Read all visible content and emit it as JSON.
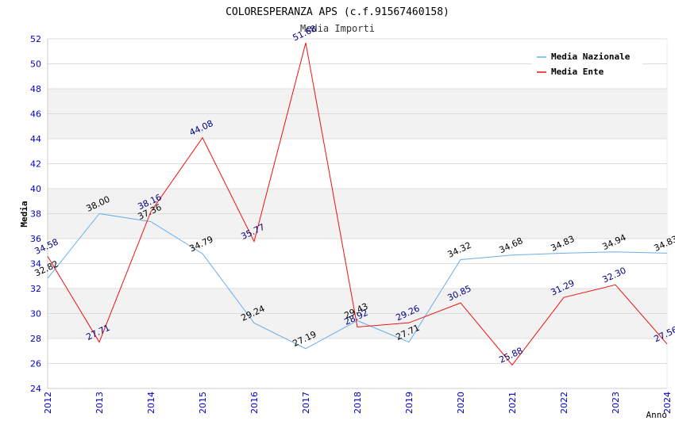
{
  "chart_data": {
    "type": "line",
    "title": "COLORESPERANZA APS (c.f.91567460158)",
    "subtitle": "Media Importi",
    "xlabel": "Anno",
    "ylabel": "Media",
    "ylim": [
      24,
      52
    ],
    "yticks": [
      24,
      26,
      28,
      30,
      32,
      34,
      36,
      38,
      40,
      42,
      44,
      46,
      48,
      50,
      52
    ],
    "categories": [
      "2012",
      "2013",
      "2014",
      "2015",
      "2016",
      "2017",
      "2018",
      "2019",
      "2020",
      "2021",
      "2022",
      "2023",
      "2024"
    ],
    "legend_position": "top-right",
    "series": [
      {
        "name": "Media Nazionale",
        "color": "#6aaee8",
        "label_color": "#000000",
        "values": [
          32.82,
          38.0,
          37.36,
          34.79,
          29.24,
          27.19,
          29.43,
          27.71,
          34.32,
          34.68,
          34.83,
          34.94,
          34.83
        ],
        "labels": [
          "32.82",
          "38.00",
          "37.36",
          "34.79",
          "29.24",
          "27.19",
          "29.43",
          "27.71",
          "34.32",
          "34.68",
          "34.83",
          "34.94",
          "34.83"
        ]
      },
      {
        "name": "Media Ente",
        "color": "#ee1111",
        "label_color": "#000080",
        "values": [
          34.58,
          27.71,
          38.16,
          44.08,
          35.77,
          51.68,
          28.92,
          29.26,
          30.85,
          25.88,
          31.29,
          32.3,
          27.56
        ],
        "labels": [
          "34.58",
          "27.71",
          "38.16",
          "44.08",
          "35.77",
          "51.68",
          "28.92",
          "29.26",
          "30.85",
          "25.88",
          "31.29",
          "32.30",
          "27.56"
        ]
      }
    ],
    "colors": {
      "band": "#f2f2f2",
      "grid": "#dddddd",
      "axis_text": "#0000cc"
    }
  }
}
